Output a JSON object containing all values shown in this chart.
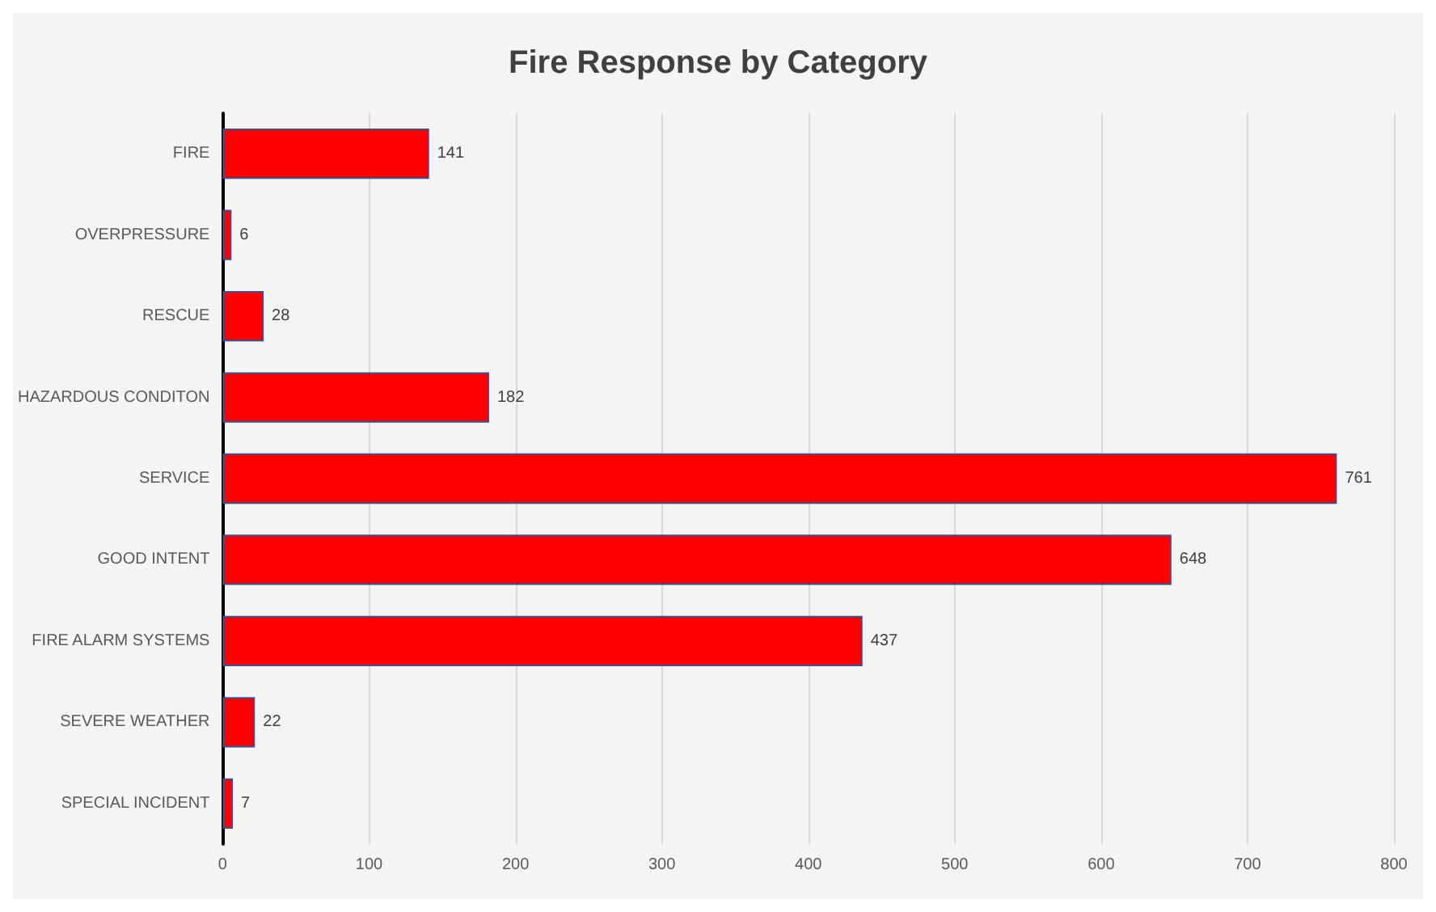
{
  "chart_data": {
    "type": "bar",
    "orientation": "horizontal",
    "title": "Fire Response by Category",
    "categories": [
      "FIRE",
      "OVERPRESSURE",
      "RESCUE",
      "HAZARDOUS CONDITON",
      "SERVICE",
      "GOOD INTENT",
      "FIRE ALARM SYSTEMS",
      "SEVERE WEATHER",
      "SPECIAL INCIDENT"
    ],
    "values": [
      141,
      6,
      28,
      182,
      761,
      648,
      437,
      22,
      7
    ],
    "color": "#ff0000",
    "xlim": [
      0,
      800
    ],
    "xticks": [
      0,
      100,
      200,
      300,
      400,
      500,
      600,
      700,
      800
    ],
    "grid": "x",
    "data_labels": true
  }
}
